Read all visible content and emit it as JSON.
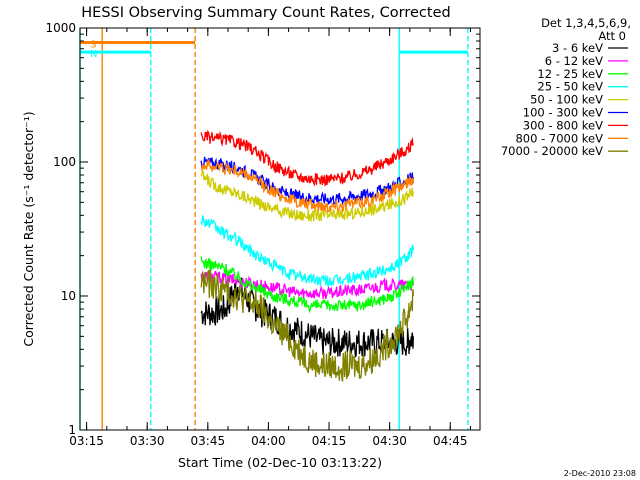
{
  "chart_data": {
    "type": "line",
    "title": "HESSI Observing Summary Count Rates, Corrected",
    "xlabel": "Start Time (02-Dec-10 03:13:22)",
    "ylabel": "Corrected Count Rate (s⁻¹ detector⁻¹)",
    "yscale": "log",
    "ylim": [
      1,
      1000
    ],
    "xlim_minutes": [
      0,
      99
    ],
    "x_ticks": [
      "03:15",
      "03:30",
      "03:45",
      "04:00",
      "04:15",
      "04:30",
      "04:45"
    ],
    "y_ticks": [
      "1",
      "10",
      "100",
      "1000"
    ],
    "legend": {
      "placement": "right",
      "header": [
        "Det 1,3,4,5,6,9,",
        "Att 0"
      ]
    },
    "timestamp": "2-Dec-2010 23:08",
    "series": [
      {
        "name": "3 - 6 keV",
        "color": "#000000",
        "x": [
          30,
          33,
          36,
          39,
          42,
          45,
          48,
          51,
          54,
          57,
          60,
          63,
          66,
          69,
          72,
          75,
          78,
          81,
          82.5
        ],
        "values": [
          7.5,
          7.5,
          8,
          12,
          9,
          7.5,
          7,
          6,
          5.5,
          5,
          4.5,
          4.5,
          4.5,
          4.5,
          4.5,
          4.5,
          4.5,
          4.5,
          5
        ]
      },
      {
        "name": "6 - 12 keV",
        "color": "#ff00ff",
        "x": [
          30,
          33,
          36,
          39,
          42,
          45,
          48,
          51,
          54,
          57,
          60,
          63,
          66,
          69,
          72,
          75,
          78,
          81,
          82.5
        ],
        "values": [
          14,
          14,
          13.5,
          13,
          12.5,
          12,
          11.5,
          11,
          10.5,
          10.5,
          10.5,
          10.5,
          11,
          11,
          11.5,
          12,
          12,
          12,
          12
        ]
      },
      {
        "name": "12 - 25 keV",
        "color": "#00ff00",
        "x": [
          30,
          33,
          36,
          39,
          42,
          45,
          48,
          51,
          54,
          57,
          60,
          63,
          66,
          69,
          72,
          75,
          78,
          81,
          82.5
        ],
        "values": [
          18,
          17,
          16,
          14,
          12,
          11,
          10,
          9.5,
          9,
          8.5,
          8.5,
          8.5,
          8.5,
          8.5,
          9,
          9.5,
          10,
          12,
          13
        ]
      },
      {
        "name": "25 - 50 keV",
        "color": "#00ffff",
        "x": [
          30,
          33,
          36,
          39,
          42,
          45,
          48,
          51,
          54,
          57,
          60,
          63,
          66,
          69,
          72,
          75,
          78,
          81,
          82.5
        ],
        "values": [
          38,
          33,
          29,
          26,
          22,
          19,
          17,
          15,
          14,
          13.5,
          13,
          13,
          13.5,
          14,
          14.5,
          15.5,
          17,
          20,
          22
        ]
      },
      {
        "name": "50 - 100 keV",
        "color": "#cccc00",
        "x": [
          30,
          33,
          36,
          39,
          42,
          45,
          48,
          51,
          54,
          57,
          60,
          63,
          66,
          69,
          72,
          75,
          78,
          81,
          82.5
        ],
        "values": [
          80,
          68,
          62,
          58,
          53,
          48,
          45,
          42,
          40,
          40,
          40,
          40,
          41,
          42,
          44,
          46,
          50,
          55,
          60
        ]
      },
      {
        "name": "100 - 300 keV",
        "color": "#0000ff",
        "x": [
          30,
          33,
          36,
          39,
          42,
          45,
          48,
          51,
          54,
          57,
          60,
          63,
          66,
          69,
          72,
          75,
          78,
          81,
          82.5
        ],
        "values": [
          100,
          98,
          95,
          90,
          82,
          72,
          64,
          58,
          55,
          54,
          53,
          53,
          54,
          56,
          58,
          62,
          67,
          73,
          77
        ]
      },
      {
        "name": "300 - 800 keV",
        "color": "#ff0000",
        "x": [
          30,
          33,
          36,
          39,
          42,
          45,
          48,
          51,
          54,
          57,
          60,
          63,
          66,
          69,
          72,
          75,
          78,
          81,
          82.5
        ],
        "values": [
          155,
          150,
          147,
          140,
          128,
          110,
          95,
          85,
          78,
          75,
          74,
          75,
          77,
          82,
          88,
          98,
          110,
          125,
          135
        ]
      },
      {
        "name": "800 - 7000 keV",
        "color": "#ff8000",
        "x": [
          30,
          33,
          36,
          39,
          42,
          45,
          48,
          51,
          54,
          57,
          60,
          63,
          66,
          69,
          72,
          75,
          78,
          81,
          82.5
        ],
        "values": [
          95,
          93,
          90,
          85,
          78,
          68,
          60,
          54,
          50,
          48,
          47,
          47,
          48,
          50,
          52,
          56,
          62,
          70,
          75
        ]
      },
      {
        "name": "7000 - 20000 keV",
        "color": "#808000",
        "x": [
          30,
          33,
          36,
          39,
          42,
          45,
          48,
          51,
          54,
          57,
          60,
          63,
          66,
          69,
          72,
          75,
          78,
          81,
          82.5
        ],
        "values": [
          13,
          12,
          11,
          10,
          9,
          8,
          6,
          5,
          4,
          3.3,
          3,
          3,
          3,
          3,
          3.3,
          4,
          5,
          7,
          10
        ]
      }
    ],
    "vertical_markers": [
      {
        "x": 0,
        "color": "#00ffff",
        "style": "solid"
      },
      {
        "x": 5.5,
        "color": "#ff8000",
        "style": "solid"
      },
      {
        "x": 17.5,
        "color": "#00ffff",
        "style": "dashed"
      },
      {
        "x": 28.5,
        "color": "#ff8000",
        "style": "dashed"
      },
      {
        "x": 79,
        "color": "#00ffff",
        "style": "solid"
      },
      {
        "x": 96,
        "color": "#00ffff",
        "style": "dashed"
      }
    ],
    "horizontal_segments": [
      {
        "label": "S",
        "x_start": 0,
        "x_end": 28.5,
        "y": 780,
        "color": "#ff8000"
      },
      {
        "label": "N",
        "x_start": 0,
        "x_end": 17.5,
        "y": 660,
        "color": "#00ffff"
      },
      {
        "label": "",
        "x_start": 79,
        "x_end": 96,
        "y": 660,
        "color": "#00ffff"
      }
    ]
  }
}
